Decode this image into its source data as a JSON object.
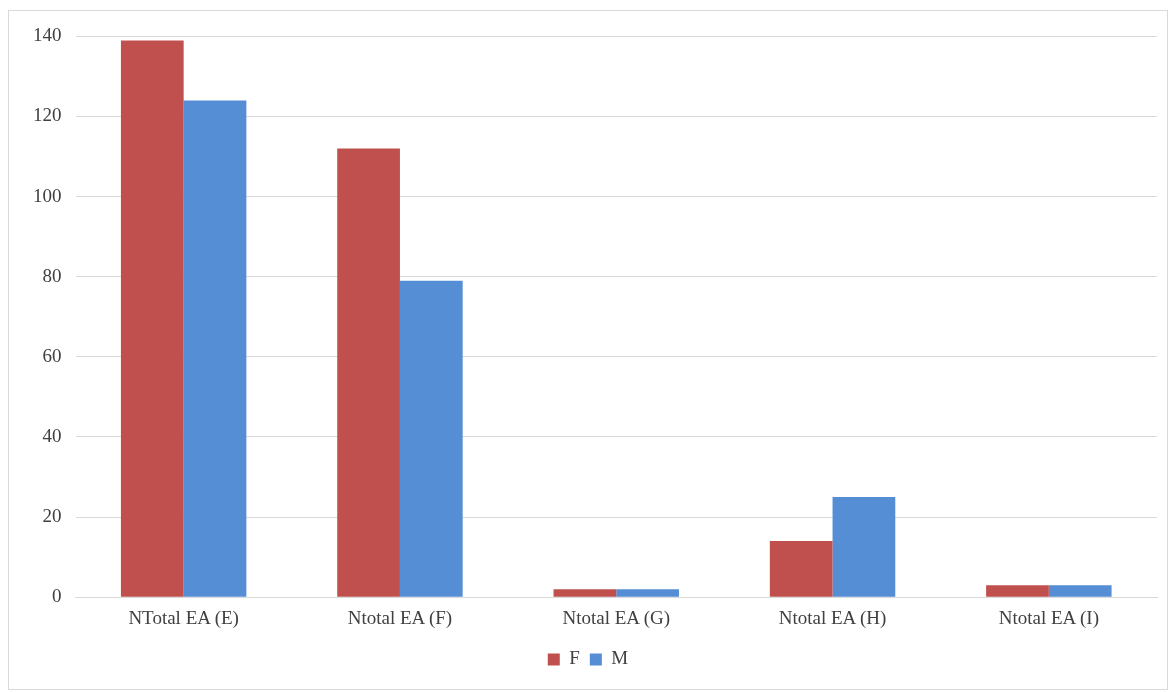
{
  "chart_data": {
    "type": "bar",
    "categories": [
      "NTotal EA (E)",
      "Ntotal EA (F)",
      "Ntotal EA (G)",
      "Ntotal EA (H)",
      "Ntotal EA (I)"
    ],
    "series": [
      {
        "name": "F",
        "color": "#c0504d",
        "values": [
          139,
          112,
          2,
          14,
          3
        ]
      },
      {
        "name": "M",
        "color": "#558ed5",
        "values": [
          124,
          79,
          2,
          25,
          3
        ]
      }
    ],
    "ylim": [
      0,
      140
    ],
    "yticks": [
      0,
      20,
      40,
      60,
      80,
      100,
      120,
      140
    ],
    "grid": "y",
    "legend": "bottom"
  }
}
